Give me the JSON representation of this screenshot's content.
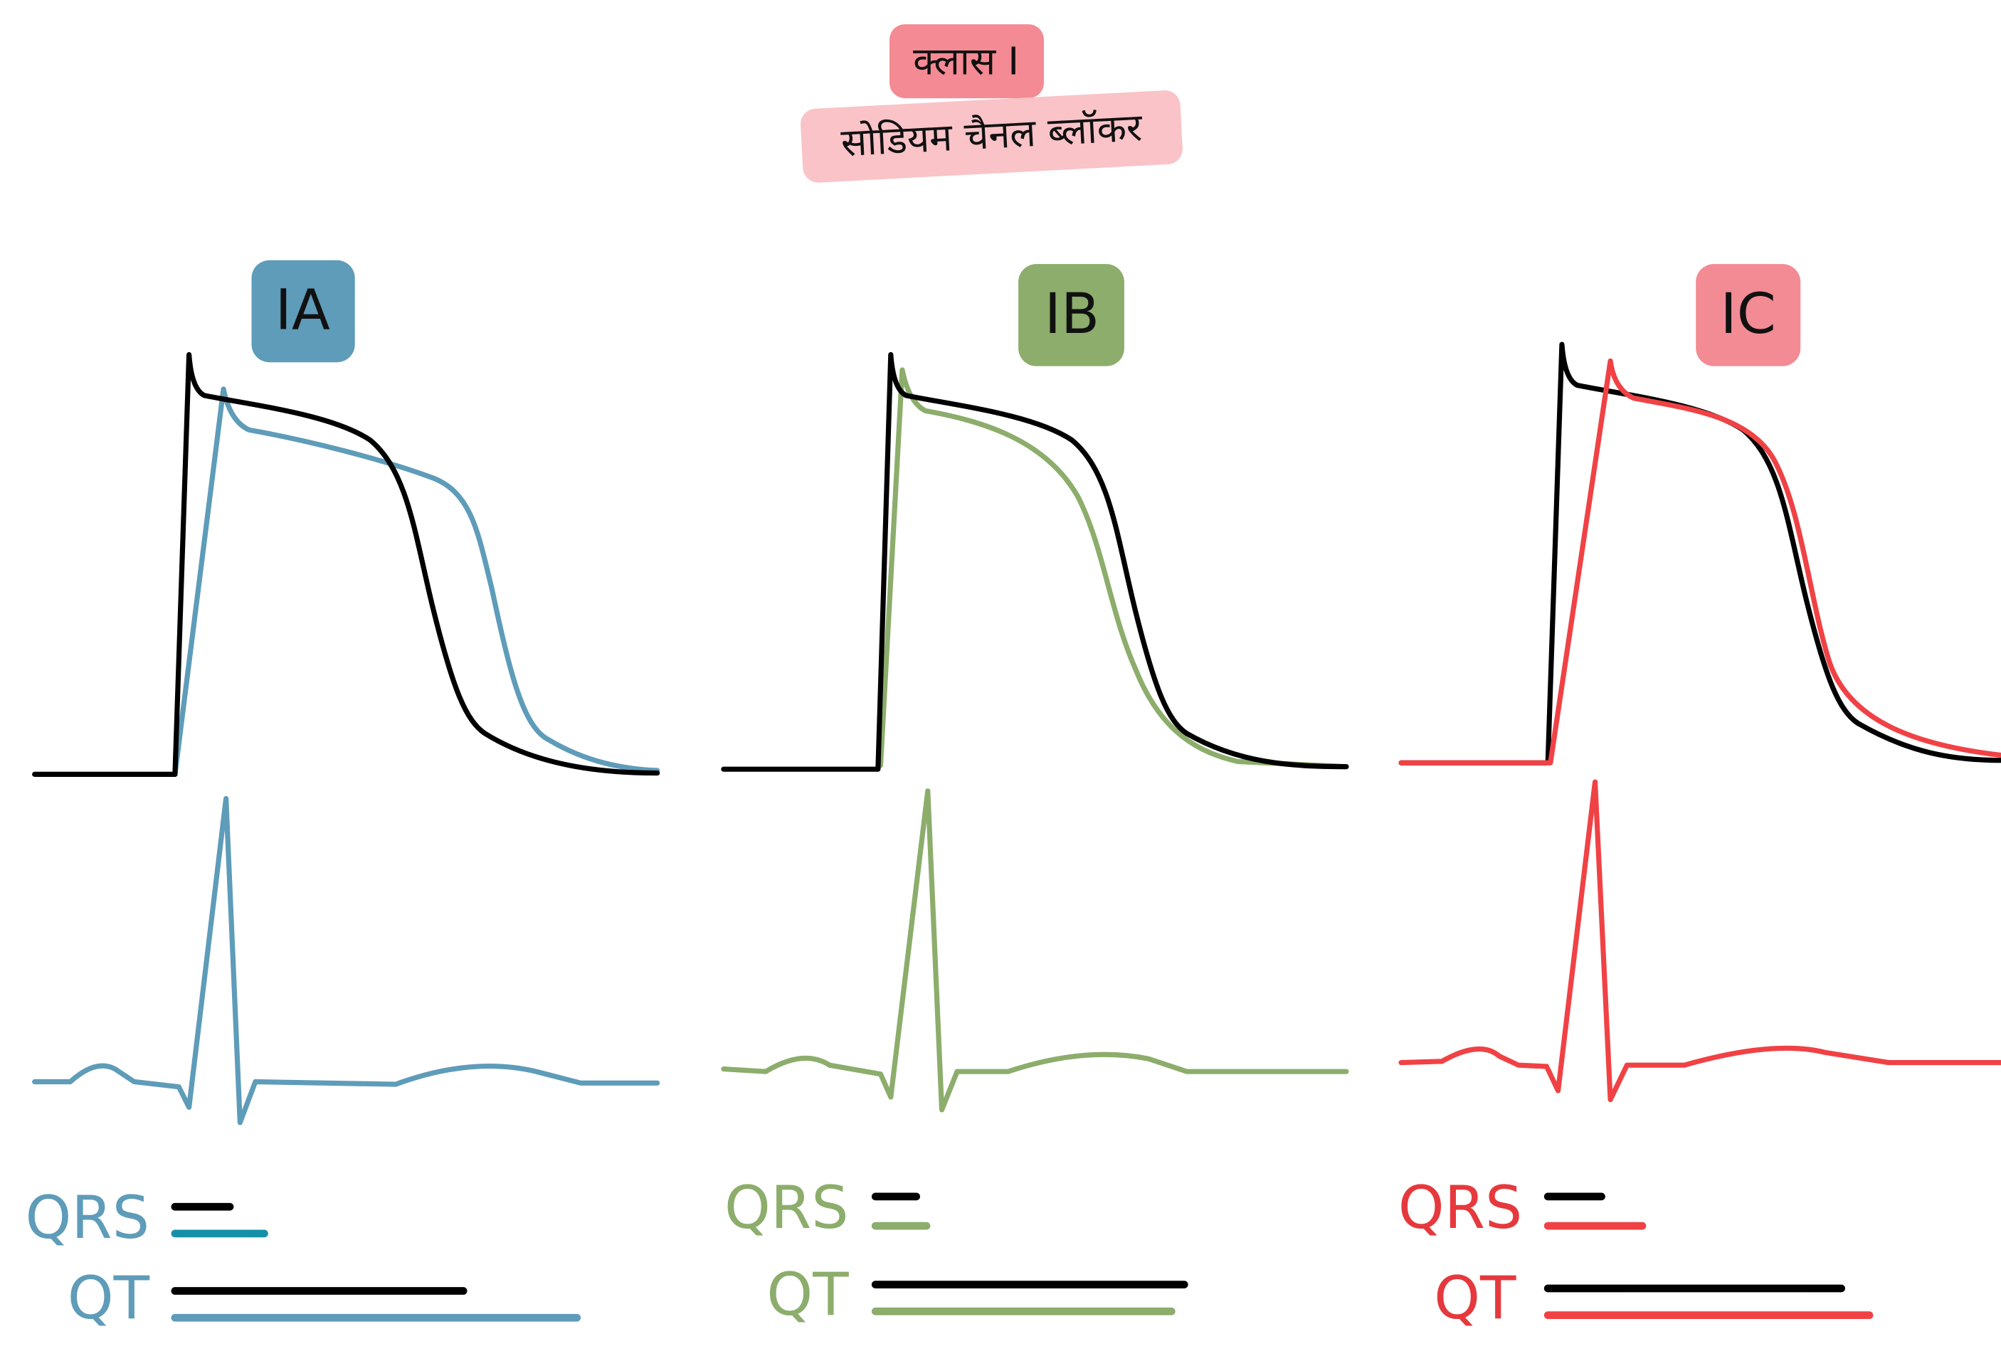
{
  "header": {
    "class_label": "क्लास I",
    "subtitle": "सोडियम चैनल ब्लॉकर"
  },
  "panels": [
    {
      "label": "IA",
      "qrs": "QRS",
      "qt": "QT"
    },
    {
      "label": "IB",
      "qrs": "QRS",
      "qt": "QT"
    },
    {
      "label": "IC",
      "qrs": "QRS",
      "qt": "QT"
    }
  ]
}
